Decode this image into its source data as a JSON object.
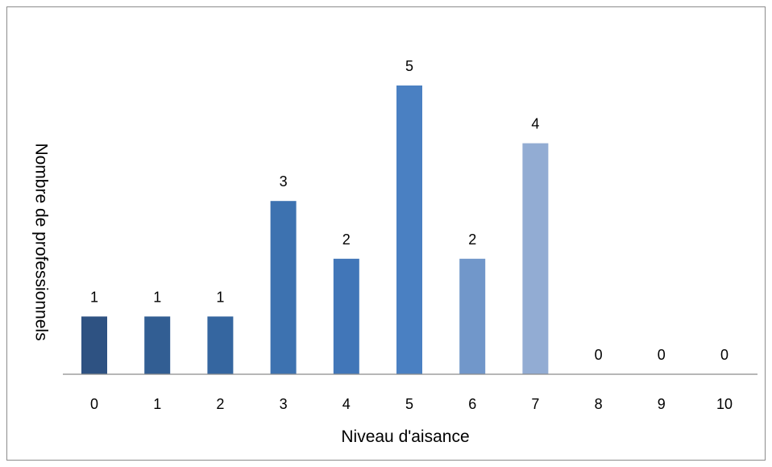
{
  "chart_data": {
    "type": "bar",
    "categories": [
      "0",
      "1",
      "2",
      "3",
      "4",
      "5",
      "6",
      "7",
      "8",
      "9",
      "10"
    ],
    "values": [
      1,
      1,
      1,
      3,
      2,
      5,
      2,
      4,
      0,
      0,
      0
    ],
    "data_labels": [
      "1",
      "1",
      "1",
      "3",
      "2",
      "5",
      "2",
      "4",
      "0",
      "0",
      "0"
    ],
    "bar_colors": [
      "#2e5282",
      "#325e93",
      "#3566a0",
      "#3d72b0",
      "#4176b8",
      "#4a80c2",
      "#7197ca",
      "#92acd3",
      "#a7bedd",
      "#b9cbe4",
      "#c7d5ea"
    ],
    "title": "",
    "xlabel": "Niveau d'aisance",
    "ylabel": "Nombre de professionnels",
    "ylim": [
      0,
      5
    ],
    "grid": false,
    "legend": "none",
    "axis_color": "#8c8c8c"
  }
}
